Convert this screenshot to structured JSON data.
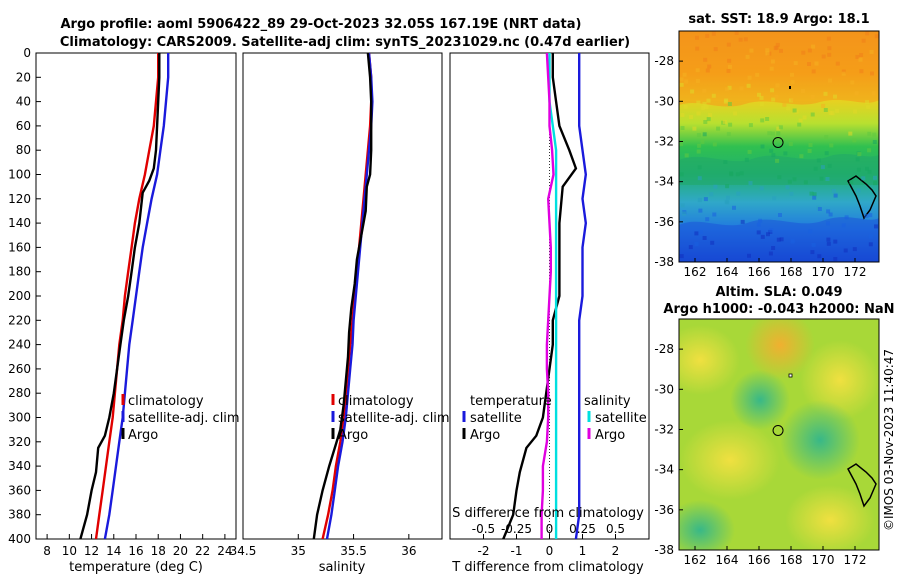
{
  "header": {
    "line1": "Argo profile: aoml 5906422_89 29-Oct-2023 32.05S 167.19E (NRT data)",
    "line2": "Climatology: CARS2009. Satellite-adj clim: synTS_20231029.nc (0.47d earlier)"
  },
  "footer": {
    "credit": "©IMOS 03-Nov-2023 11:40:47"
  },
  "colors": {
    "argo": "#000000",
    "climatology": "#e00000",
    "satellite": "#1a1adc",
    "salinity_diff": "#00e0e0",
    "salinity_argo_diff": "#e000e0"
  },
  "chart_data": [
    {
      "id": "temperature",
      "type": "line",
      "xlabel": "temperature (deg C)",
      "xlim": [
        7,
        25
      ],
      "ylim": [
        0,
        400
      ],
      "xticks": [
        "8",
        "10",
        "12",
        "14",
        "16",
        "18",
        "20",
        "22",
        "24"
      ],
      "xtick_values": [
        8,
        10,
        12,
        14,
        16,
        18,
        20,
        22,
        24
      ],
      "yticks": [
        "0",
        "20",
        "40",
        "60",
        "80",
        "100",
        "120",
        "140",
        "160",
        "180",
        "200",
        "220",
        "240",
        "260",
        "280",
        "300",
        "320",
        "340",
        "360",
        "380",
        "400"
      ],
      "legend": [
        "climatology",
        "satellite-adj. clim",
        "Argo"
      ],
      "series": [
        {
          "name": "climatology",
          "color": "#e00000",
          "points": [
            [
              18.0,
              0
            ],
            [
              18.0,
              20
            ],
            [
              17.8,
              40
            ],
            [
              17.6,
              60
            ],
            [
              17.2,
              80
            ],
            [
              16.8,
              100
            ],
            [
              16.3,
              120
            ],
            [
              15.9,
              140
            ],
            [
              15.6,
              160
            ],
            [
              15.3,
              180
            ],
            [
              15.0,
              200
            ],
            [
              14.8,
              220
            ],
            [
              14.5,
              240
            ],
            [
              14.3,
              260
            ],
            [
              14.1,
              280
            ],
            [
              13.9,
              300
            ],
            [
              13.6,
              320
            ],
            [
              13.3,
              340
            ],
            [
              13.0,
              360
            ],
            [
              12.7,
              380
            ],
            [
              12.4,
              400
            ]
          ]
        },
        {
          "name": "satellite-adj. clim",
          "color": "#1a1adc",
          "points": [
            [
              18.9,
              0
            ],
            [
              18.9,
              20
            ],
            [
              18.7,
              40
            ],
            [
              18.5,
              60
            ],
            [
              18.2,
              80
            ],
            [
              17.9,
              100
            ],
            [
              17.4,
              120
            ],
            [
              17.0,
              140
            ],
            [
              16.6,
              160
            ],
            [
              16.3,
              180
            ],
            [
              16.0,
              200
            ],
            [
              15.7,
              220
            ],
            [
              15.4,
              240
            ],
            [
              15.2,
              260
            ],
            [
              15.0,
              280
            ],
            [
              14.8,
              300
            ],
            [
              14.5,
              320
            ],
            [
              14.2,
              340
            ],
            [
              13.9,
              360
            ],
            [
              13.6,
              380
            ],
            [
              13.2,
              400
            ]
          ]
        },
        {
          "name": "Argo",
          "color": "#000000",
          "points": [
            [
              18.1,
              0
            ],
            [
              18.1,
              20
            ],
            [
              18.0,
              40
            ],
            [
              17.9,
              60
            ],
            [
              17.8,
              80
            ],
            [
              17.6,
              95
            ],
            [
              17.2,
              105
            ],
            [
              16.6,
              115
            ],
            [
              16.3,
              140
            ],
            [
              15.9,
              160
            ],
            [
              15.6,
              180
            ],
            [
              15.3,
              200
            ],
            [
              14.9,
              220
            ],
            [
              14.6,
              240
            ],
            [
              14.3,
              260
            ],
            [
              14.0,
              280
            ],
            [
              13.6,
              300
            ],
            [
              13.2,
              315
            ],
            [
              12.6,
              325
            ],
            [
              12.4,
              345
            ],
            [
              12.0,
              360
            ],
            [
              11.6,
              380
            ],
            [
              11.0,
              400
            ]
          ]
        }
      ]
    },
    {
      "id": "salinity",
      "type": "line",
      "xlabel": "salinity",
      "xlim": [
        34.5,
        36.3
      ],
      "ylim": [
        0,
        400
      ],
      "xticks": [
        "34.5",
        "35",
        "35.5",
        "36"
      ],
      "xtick_values": [
        34.5,
        35,
        35.5,
        36
      ],
      "legend": [
        "climatology",
        "satellite-adj. clim",
        "Argo"
      ],
      "series": [
        {
          "name": "climatology",
          "color": "#e00000",
          "points": [
            [
              35.64,
              0
            ],
            [
              35.66,
              20
            ],
            [
              35.66,
              40
            ],
            [
              35.65,
              60
            ],
            [
              35.63,
              80
            ],
            [
              35.61,
              100
            ],
            [
              35.59,
              120
            ],
            [
              35.57,
              140
            ],
            [
              35.55,
              160
            ],
            [
              35.53,
              180
            ],
            [
              35.51,
              200
            ],
            [
              35.49,
              220
            ],
            [
              35.47,
              240
            ],
            [
              35.45,
              260
            ],
            [
              35.43,
              280
            ],
            [
              35.41,
              300
            ],
            [
              35.38,
              320
            ],
            [
              35.34,
              340
            ],
            [
              35.31,
              360
            ],
            [
              35.27,
              380
            ],
            [
              35.22,
              400
            ]
          ]
        },
        {
          "name": "satellite-adj. clim",
          "color": "#1a1adc",
          "points": [
            [
              35.64,
              0
            ],
            [
              35.66,
              20
            ],
            [
              35.67,
              40
            ],
            [
              35.66,
              60
            ],
            [
              35.64,
              80
            ],
            [
              35.62,
              100
            ],
            [
              35.6,
              120
            ],
            [
              35.58,
              140
            ],
            [
              35.56,
              160
            ],
            [
              35.54,
              180
            ],
            [
              35.52,
              200
            ],
            [
              35.5,
              220
            ],
            [
              35.49,
              240
            ],
            [
              35.47,
              260
            ],
            [
              35.45,
              280
            ],
            [
              35.43,
              300
            ],
            [
              35.4,
              320
            ],
            [
              35.36,
              340
            ],
            [
              35.33,
              360
            ],
            [
              35.3,
              380
            ],
            [
              35.26,
              400
            ]
          ]
        },
        {
          "name": "Argo",
          "color": "#000000",
          "points": [
            [
              35.63,
              0
            ],
            [
              35.65,
              20
            ],
            [
              35.66,
              40
            ],
            [
              35.66,
              60
            ],
            [
              35.66,
              80
            ],
            [
              35.65,
              100
            ],
            [
              35.62,
              110
            ],
            [
              35.61,
              130
            ],
            [
              35.57,
              150
            ],
            [
              35.53,
              170
            ],
            [
              35.51,
              190
            ],
            [
              35.48,
              210
            ],
            [
              35.46,
              230
            ],
            [
              35.45,
              250
            ],
            [
              35.43,
              270
            ],
            [
              35.41,
              290
            ],
            [
              35.38,
              310
            ],
            [
              35.33,
              325
            ],
            [
              35.28,
              340
            ],
            [
              35.22,
              360
            ],
            [
              35.17,
              380
            ],
            [
              35.14,
              400
            ]
          ]
        }
      ]
    },
    {
      "id": "difference",
      "type": "line",
      "xlabel": "T difference from climatology",
      "xlabel_top": "S difference from climatology",
      "xlim": [
        -3,
        3
      ],
      "ylim": [
        0,
        400
      ],
      "xticks": [
        "-2",
        "-1",
        "0",
        "1",
        "2"
      ],
      "xtick_values": [
        -2,
        -1,
        0,
        1,
        2
      ],
      "sticks": [
        "-0.5",
        "-0.25",
        "0",
        "0.25",
        "0.5"
      ],
      "stick_values": [
        -0.5,
        -0.25,
        0,
        0.25,
        0.5
      ],
      "legend_temperature": {
        "title": "temperature",
        "items": [
          "satellite",
          "Argo"
        ]
      },
      "legend_salinity": {
        "title": "salinity",
        "items": [
          "satellite",
          "Argo"
        ]
      },
      "series": [
        {
          "name": "temperature satellite",
          "color": "#1a1adc",
          "points": [
            [
              0.9,
              0
            ],
            [
              0.9,
              20
            ],
            [
              0.9,
              40
            ],
            [
              0.9,
              60
            ],
            [
              1.0,
              80
            ],
            [
              1.1,
              100
            ],
            [
              1.0,
              120
            ],
            [
              1.1,
              140
            ],
            [
              1.0,
              160
            ],
            [
              1.0,
              180
            ],
            [
              1.0,
              200
            ],
            [
              0.9,
              220
            ],
            [
              0.9,
              240
            ],
            [
              0.9,
              260
            ],
            [
              0.9,
              280
            ],
            [
              0.9,
              300
            ],
            [
              0.9,
              320
            ],
            [
              0.9,
              340
            ],
            [
              0.9,
              360
            ],
            [
              0.9,
              380
            ],
            [
              0.8,
              400
            ]
          ]
        },
        {
          "name": "temperature Argo",
          "color": "#000000",
          "points": [
            [
              0.1,
              0
            ],
            [
              0.1,
              20
            ],
            [
              0.2,
              40
            ],
            [
              0.3,
              60
            ],
            [
              0.6,
              80
            ],
            [
              0.8,
              95
            ],
            [
              0.4,
              110
            ],
            [
              0.3,
              140
            ],
            [
              0.3,
              160
            ],
            [
              0.3,
              180
            ],
            [
              0.3,
              200
            ],
            [
              0.1,
              220
            ],
            [
              0.1,
              240
            ],
            [
              0.0,
              260
            ],
            [
              -0.1,
              280
            ],
            [
              -0.2,
              300
            ],
            [
              -0.4,
              315
            ],
            [
              -0.7,
              325
            ],
            [
              -0.9,
              345
            ],
            [
              -1.0,
              360
            ],
            [
              -1.1,
              380
            ],
            [
              -1.4,
              400
            ]
          ]
        },
        {
          "name": "salinity satellite",
          "color": "#00e0e0",
          "points": [
            [
              0.0,
              0
            ],
            [
              0.0,
              40
            ],
            [
              0.05,
              80
            ],
            [
              0.05,
              120
            ],
            [
              0.05,
              160
            ],
            [
              0.05,
              200
            ],
            [
              0.05,
              240
            ],
            [
              0.05,
              280
            ],
            [
              0.05,
              320
            ],
            [
              0.05,
              360
            ],
            [
              0.05,
              400
            ]
          ]
        },
        {
          "name": "salinity Argo",
          "color": "#e000e0",
          "points": [
            [
              -0.02,
              0
            ],
            [
              -0.01,
              20
            ],
            [
              0.0,
              40
            ],
            [
              0.0,
              60
            ],
            [
              0.02,
              80
            ],
            [
              0.03,
              100
            ],
            [
              -0.01,
              120
            ],
            [
              0.0,
              140
            ],
            [
              0.01,
              160
            ],
            [
              0.01,
              180
            ],
            [
              0.0,
              200
            ],
            [
              -0.01,
              220
            ],
            [
              -0.02,
              240
            ],
            [
              -0.02,
              260
            ],
            [
              -0.01,
              280
            ],
            [
              -0.01,
              300
            ],
            [
              -0.02,
              320
            ],
            [
              -0.05,
              340
            ],
            [
              -0.05,
              360
            ],
            [
              -0.06,
              380
            ],
            [
              -0.06,
              400
            ]
          ]
        }
      ]
    },
    {
      "id": "sst-map",
      "type": "heatmap",
      "title": "sat. SST: 18.9 Argo: 18.1",
      "xticks": [
        "162",
        "164",
        "166",
        "168",
        "170",
        "172"
      ],
      "xtick_values": [
        162,
        164,
        166,
        168,
        170,
        172
      ],
      "yticks": [
        "-28",
        "-30",
        "-32",
        "-34",
        "-36",
        "-38"
      ],
      "ytick_values": [
        -28,
        -30,
        -32,
        -34,
        -36,
        -38
      ],
      "xlim": [
        161,
        173.5
      ],
      "ylim": [
        -38,
        -26.5
      ],
      "profile_lon": 167.19,
      "profile_lat": -32.05
    },
    {
      "id": "sla-map",
      "type": "heatmap",
      "title_line1": "Altim. SLA: 0.049",
      "title_line2": "Argo h1000: -0.043 h2000: NaN",
      "xticks": [
        "162",
        "164",
        "166",
        "168",
        "170",
        "172"
      ],
      "xtick_values": [
        162,
        164,
        166,
        168,
        170,
        172
      ],
      "yticks": [
        "-28",
        "-30",
        "-32",
        "-34",
        "-36",
        "-38"
      ],
      "ytick_values": [
        -28,
        -30,
        -32,
        -34,
        -36,
        -38
      ],
      "xlim": [
        161,
        173.5
      ],
      "ylim": [
        -38,
        -26.5
      ],
      "profile_lon": 167.19,
      "profile_lat": -32.05
    }
  ]
}
